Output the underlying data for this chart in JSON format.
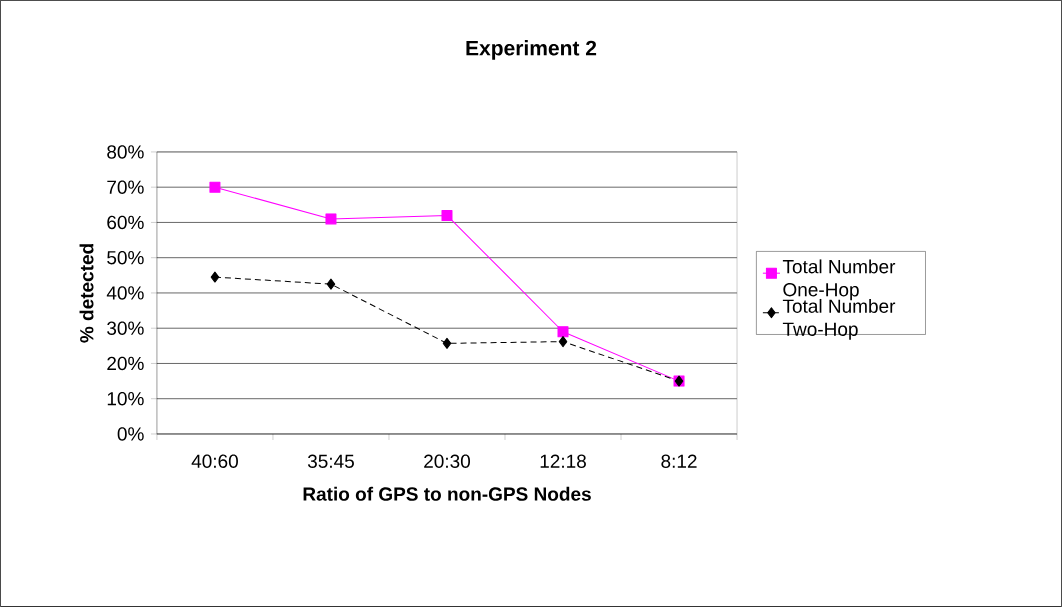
{
  "chart_data": {
    "type": "line",
    "title": "Experiment 2",
    "xlabel": "Ratio of GPS to non-GPS Nodes",
    "ylabel": "% detected",
    "categories": [
      "40:60",
      "35:45",
      "20:30",
      "12:18",
      "8:12"
    ],
    "series": [
      {
        "name": "Total Number One-Hop",
        "color": "#ff00ff",
        "marker": "square",
        "line_style": "solid",
        "values": [
          70,
          61,
          62,
          29,
          15
        ]
      },
      {
        "name": "Total Number Two-Hop",
        "color": "#000000",
        "marker": "diamond",
        "line_style": "dashed",
        "values": [
          44.5,
          42.5,
          25.7,
          26.2,
          15
        ]
      }
    ],
    "ylim": [
      0,
      80
    ],
    "yticks": [
      {
        "value": 0,
        "label": "0%"
      },
      {
        "value": 10,
        "label": "10%"
      },
      {
        "value": 20,
        "label": "20%"
      },
      {
        "value": 30,
        "label": "30%"
      },
      {
        "value": 40,
        "label": "40%"
      },
      {
        "value": 50,
        "label": "50%"
      },
      {
        "value": 60,
        "label": "60%"
      },
      {
        "value": 70,
        "label": "70%"
      },
      {
        "value": 80,
        "label": "80%"
      }
    ],
    "grid": "y",
    "legend": "right"
  }
}
